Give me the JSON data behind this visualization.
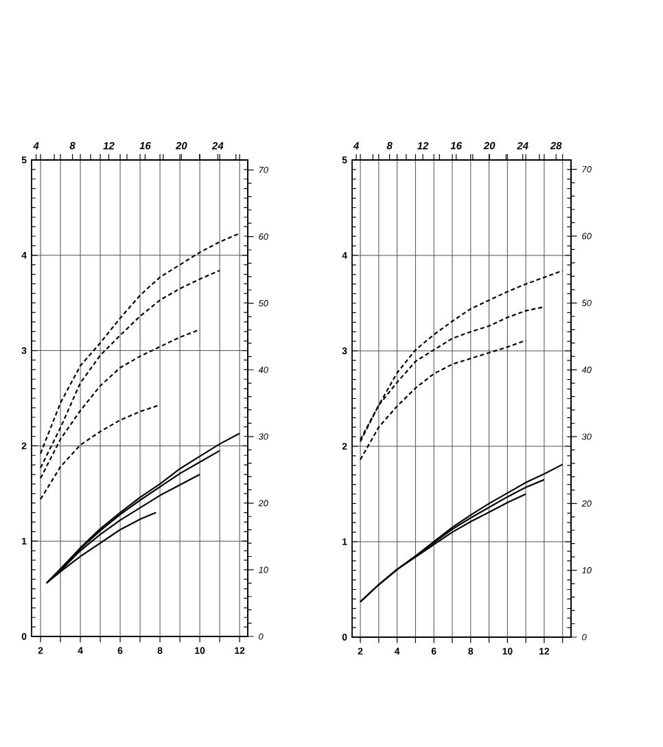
{
  "chart_data": [
    {
      "type": "line",
      "xlim": [
        1.55,
        12.41
      ],
      "ylim": [
        0,
        5
      ],
      "x2lim": [
        3.5,
        27.3
      ],
      "y2lim": [
        0,
        71.5
      ],
      "grid": true,
      "xticks": [
        2,
        {
          "value": 3,
          "label": null
        },
        4,
        {
          "value": 5,
          "label": null
        },
        6,
        {
          "value": 7,
          "label": null
        },
        8,
        {
          "value": 9,
          "label": null
        },
        10,
        {
          "value": 11,
          "label": null
        },
        12
      ],
      "yticks": [
        0,
        1,
        2,
        3,
        4,
        5
      ],
      "x2ticks": [
        4,
        {
          "value": 6,
          "label": null
        },
        8,
        {
          "value": 10,
          "label": null
        },
        12,
        {
          "value": 14,
          "label": null
        },
        16,
        {
          "value": 18,
          "label": null
        },
        20,
        {
          "value": 22,
          "label": null
        },
        24,
        {
          "value": 26,
          "label": null
        }
      ],
      "y2ticks": [
        0,
        10,
        20,
        30,
        40,
        50,
        60,
        70
      ],
      "series": [
        {
          "color": "#000000",
          "line_style": "dashed",
          "x": [
            2,
            3,
            4,
            5,
            6,
            7,
            8,
            9,
            10,
            11,
            12
          ],
          "values": [
            1.92,
            2.45,
            2.84,
            3.08,
            3.34,
            3.58,
            3.77,
            3.9,
            4.03,
            4.14,
            4.23
          ]
        },
        {
          "color": "#000000",
          "line_style": "dashed",
          "x": [
            2,
            3,
            4,
            5,
            6,
            7,
            8,
            9,
            10,
            11
          ],
          "values": [
            1.77,
            2.19,
            2.66,
            2.95,
            3.16,
            3.36,
            3.53,
            3.65,
            3.75,
            3.84
          ]
        },
        {
          "color": "#000000",
          "line_style": "dashed",
          "x": [
            2,
            3,
            4,
            5,
            6,
            7,
            8,
            9,
            10
          ],
          "values": [
            1.66,
            2.07,
            2.37,
            2.63,
            2.82,
            2.94,
            3.04,
            3.14,
            3.22
          ]
        },
        {
          "color": "#000000",
          "line_style": "dashed",
          "x": [
            2,
            3,
            4,
            5,
            6,
            7,
            8
          ],
          "values": [
            1.44,
            1.78,
            2.01,
            2.15,
            2.27,
            2.36,
            2.43
          ]
        },
        {
          "color": "#000000",
          "line_style": "solid",
          "x": [
            2.3,
            3,
            4,
            5,
            6,
            7,
            8,
            9,
            10,
            11,
            12
          ],
          "values": [
            0.56,
            0.71,
            0.93,
            1.13,
            1.3,
            1.46,
            1.6,
            1.76,
            1.89,
            2.02,
            2.13
          ]
        },
        {
          "color": "#000000",
          "line_style": "solid",
          "x": [
            2.3,
            3,
            4,
            5,
            6,
            7,
            8,
            9,
            10,
            11
          ],
          "values": [
            0.56,
            0.7,
            0.92,
            1.11,
            1.28,
            1.43,
            1.57,
            1.71,
            1.83,
            1.95
          ]
        },
        {
          "color": "#000000",
          "line_style": "solid",
          "x": [
            2.3,
            3,
            4,
            5,
            6,
            7,
            8,
            9,
            10
          ],
          "values": [
            0.56,
            0.69,
            0.9,
            1.07,
            1.22,
            1.35,
            1.48,
            1.59,
            1.7
          ]
        },
        {
          "color": "#000000",
          "line_style": "solid",
          "x": [
            2.3,
            3,
            4,
            5,
            6,
            7,
            7.8
          ],
          "values": [
            0.56,
            0.68,
            0.84,
            0.98,
            1.12,
            1.23,
            1.3
          ]
        }
      ]
    },
    {
      "type": "line",
      "xlim": [
        1.55,
        13.46
      ],
      "ylim": [
        0,
        5
      ],
      "x2lim": [
        3.5,
        29.8
      ],
      "y2lim": [
        0,
        71.4
      ],
      "grid": true,
      "xticks": [
        2,
        {
          "value": 3,
          "label": null
        },
        4,
        {
          "value": 5,
          "label": null
        },
        6,
        {
          "value": 7,
          "label": null
        },
        8,
        {
          "value": 9,
          "label": null
        },
        10,
        {
          "value": 11,
          "label": null
        },
        12,
        {
          "value": 13,
          "label": null
        }
      ],
      "yticks": [
        0,
        1,
        2,
        3,
        4,
        5
      ],
      "x2ticks": [
        4,
        {
          "value": 6,
          "label": null
        },
        8,
        {
          "value": 10,
          "label": null
        },
        12,
        {
          "value": 14,
          "label": null
        },
        16,
        {
          "value": 18,
          "label": null
        },
        20,
        {
          "value": 22,
          "label": null
        },
        24,
        {
          "value": 26,
          "label": null
        },
        28
      ],
      "y2ticks": [
        0,
        10,
        20,
        30,
        40,
        50,
        60,
        70
      ],
      "series": [
        {
          "color": "#000000",
          "line_style": "dashed",
          "x": [
            2,
            3,
            4,
            5,
            6,
            7,
            8,
            9,
            10,
            11,
            12,
            13
          ],
          "values": [
            2.07,
            2.43,
            2.77,
            3.01,
            3.17,
            3.31,
            3.44,
            3.53,
            3.62,
            3.7,
            3.77,
            3.84
          ]
        },
        {
          "color": "#000000",
          "line_style": "dashed",
          "x": [
            2,
            3,
            4,
            5,
            6,
            7,
            8,
            9,
            10,
            11,
            12
          ],
          "values": [
            2.05,
            2.43,
            2.67,
            2.89,
            3.01,
            3.13,
            3.2,
            3.26,
            3.35,
            3.42,
            3.46
          ]
        },
        {
          "color": "#000000",
          "line_style": "dashed",
          "x": [
            2,
            3,
            4,
            5,
            6,
            7,
            8,
            9,
            10,
            11
          ],
          "values": [
            1.86,
            2.2,
            2.42,
            2.61,
            2.76,
            2.86,
            2.92,
            2.98,
            3.04,
            3.11
          ]
        },
        {
          "color": "#000000",
          "line_style": "solid",
          "x": [
            2,
            3,
            4,
            5,
            6,
            7,
            8,
            9,
            10,
            11,
            12,
            13
          ],
          "values": [
            0.37,
            0.55,
            0.71,
            0.85,
            1.0,
            1.15,
            1.28,
            1.4,
            1.51,
            1.62,
            1.71,
            1.81
          ]
        },
        {
          "color": "#000000",
          "line_style": "solid",
          "x": [
            2,
            3,
            4,
            5,
            6,
            7,
            8,
            9,
            10,
            11,
            12
          ],
          "values": [
            0.37,
            0.55,
            0.71,
            0.85,
            0.99,
            1.13,
            1.25,
            1.36,
            1.47,
            1.57,
            1.65
          ]
        },
        {
          "color": "#000000",
          "line_style": "solid",
          "x": [
            2,
            3,
            4,
            5,
            6,
            7,
            8,
            9,
            10,
            11
          ],
          "values": [
            0.37,
            0.55,
            0.71,
            0.84,
            0.97,
            1.1,
            1.21,
            1.31,
            1.41,
            1.5
          ]
        }
      ]
    }
  ]
}
